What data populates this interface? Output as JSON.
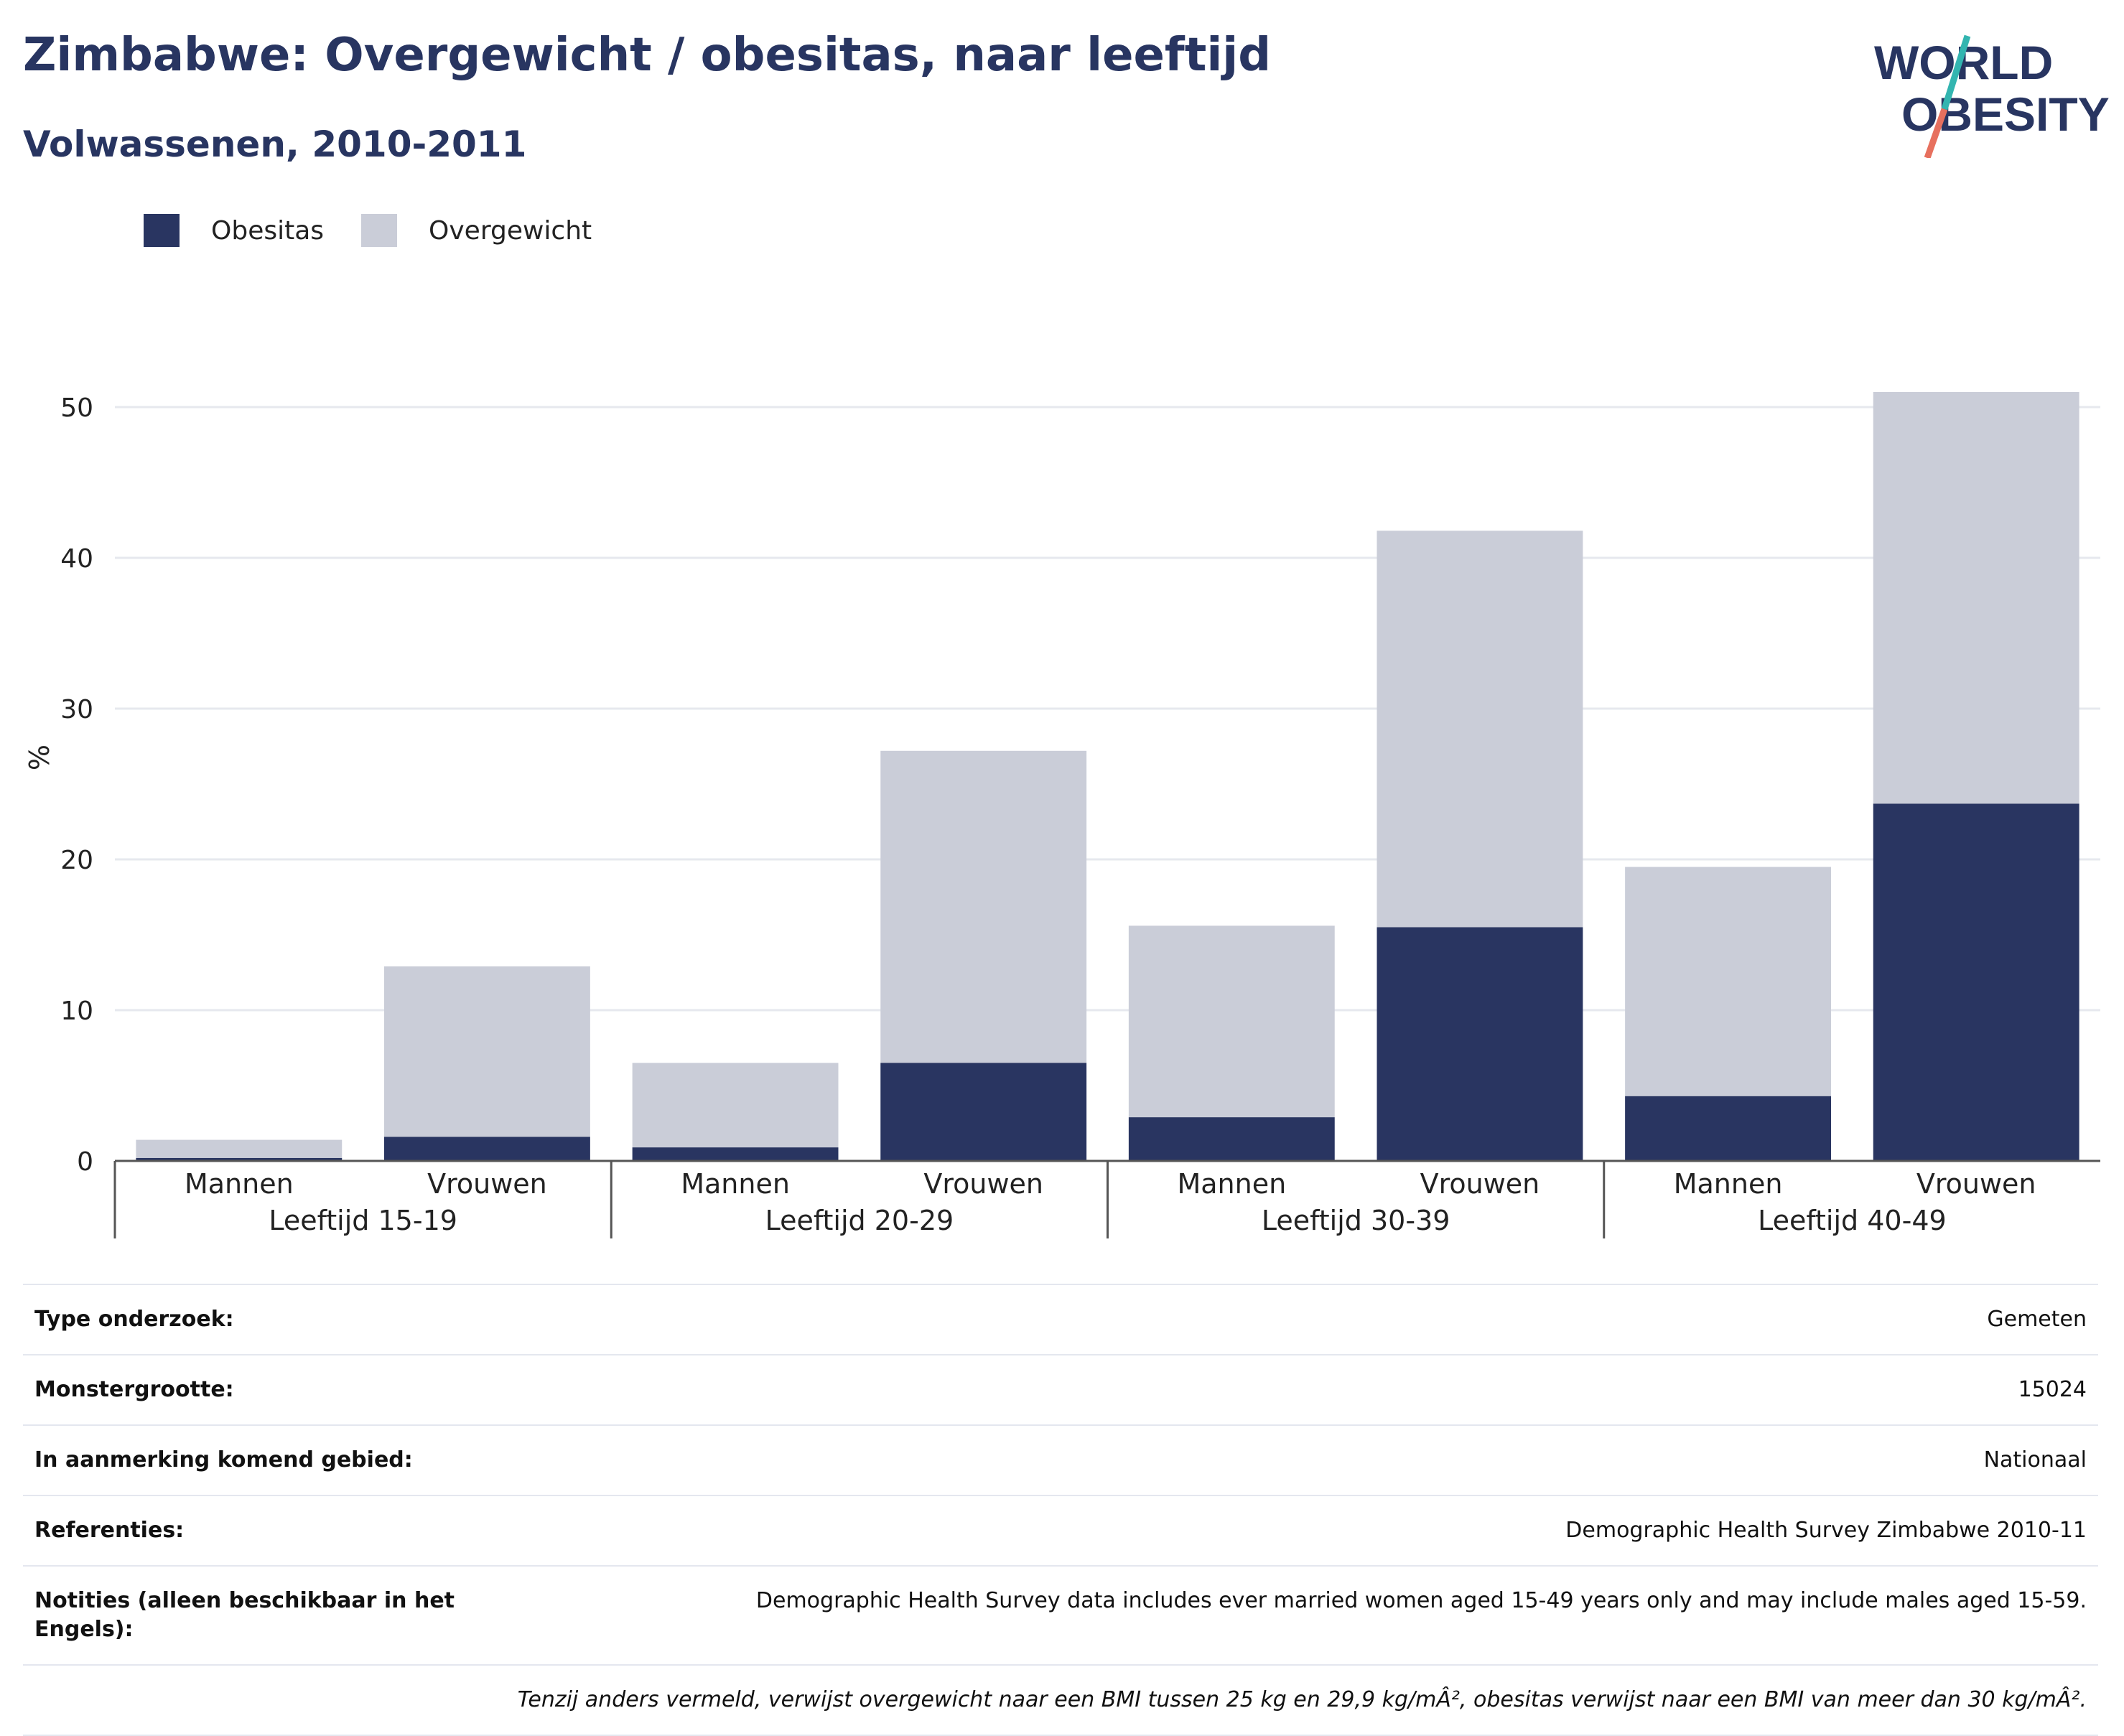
{
  "header": {
    "title": "Zimbabwe: Overgewicht / obesitas, naar leeftijd",
    "subtitle": "Volwassenen, 2010-2011"
  },
  "logo": {
    "line1": "WORLD",
    "line2": "OBESITY"
  },
  "colors": {
    "obesity": "#293561",
    "overweight": "#cacdd8",
    "title": "#283561",
    "grid": "#e6e8ee"
  },
  "chart_data": {
    "type": "bar",
    "stacked": true,
    "ylabel": "%",
    "ylim": [
      0,
      52
    ],
    "yticks": [
      0,
      10,
      20,
      30,
      40,
      50
    ],
    "grid": true,
    "legend_position": "top-left",
    "groups": [
      "Leeftijd 15-19",
      "Leeftijd 20-29",
      "Leeftijd 30-39",
      "Leeftijd 40-49"
    ],
    "categories": [
      "Mannen",
      "Vrouwen",
      "Mannen",
      "Vrouwen",
      "Mannen",
      "Vrouwen",
      "Mannen",
      "Vrouwen"
    ],
    "series": [
      {
        "name": "Obesitas",
        "values": [
          0.2,
          1.6,
          0.9,
          6.5,
          2.9,
          15.5,
          4.3,
          23.7
        ]
      },
      {
        "name": "Overgewicht",
        "values": [
          1.2,
          11.3,
          5.6,
          20.7,
          12.7,
          26.3,
          15.2,
          27.3
        ]
      }
    ]
  },
  "info": {
    "rows": [
      {
        "label": "Type onderzoek:",
        "value": "Gemeten"
      },
      {
        "label": "Monstergrootte:",
        "value": "15024"
      },
      {
        "label": "In aanmerking komend gebied:",
        "value": "Nationaal"
      },
      {
        "label": "Referenties:",
        "value": "Demographic Health Survey Zimbabwe 2010-11"
      },
      {
        "label": "Notities (alleen beschikbaar in het Engels):",
        "value": "Demographic Health Survey data includes ever married women aged 15-49 years only and may include males aged 15-59."
      }
    ],
    "footnote": "Tenzij anders vermeld, verwijst overgewicht naar een BMI tussen 25 kg en 29,9 kg/mÂ², obesitas verwijst naar een BMI van meer dan 30 kg/mÂ²."
  }
}
